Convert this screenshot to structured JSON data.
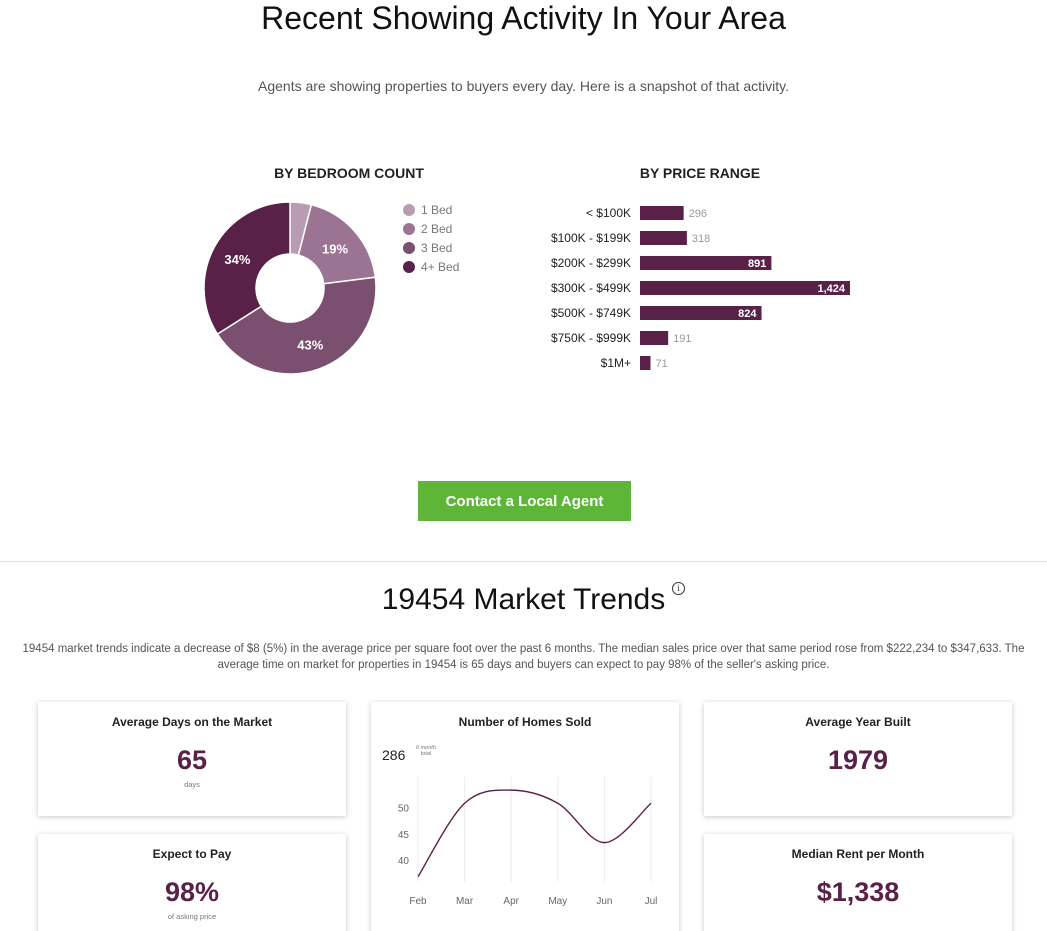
{
  "header": {
    "title": "Recent Showing Activity In Your Area",
    "subtitle": "Agents are showing properties to buyers every day. Here is a snapshot of that activity."
  },
  "bedroom": {
    "title": "BY BEDROOM COUNT",
    "legend": [
      "1 Bed",
      "2 Bed",
      "3 Bed",
      "4+ Bed"
    ],
    "colors": [
      "#b89db2",
      "#9b7493",
      "#7a4f70",
      "#5a2148"
    ]
  },
  "price": {
    "title": "BY PRICE RANGE",
    "bar_color": "#5a2148"
  },
  "cta": {
    "label": "Contact a Local Agent"
  },
  "trends": {
    "title": "19454 Market Trends",
    "info_icon": "info-icon",
    "description": "19454 market trends indicate a decrease of $8 (5%) in the average price per square foot over the past 6 months. The median sales price over that same period rose from $222,234 to $347,633. The average time on market for properties in 19454 is 65 days and buyers can expect to pay 98% of the seller's asking price."
  },
  "cards": {
    "days": {
      "title": "Average Days on the Market",
      "value": "65",
      "unit": "days"
    },
    "pay": {
      "title": "Expect to Pay",
      "value": "98%",
      "unit": "of asking price"
    },
    "year": {
      "title": "Average Year Built",
      "value": "1979"
    },
    "rent": {
      "title": "Median Rent per Month",
      "value": "$1,338"
    },
    "sold": {
      "title": "Number of Homes Sold",
      "total": "286",
      "total_label_line1": "6 month",
      "total_label_line2": "total"
    }
  },
  "chart_data": [
    {
      "type": "pie",
      "title": "BY BEDROOM COUNT",
      "categories": [
        "1 Bed",
        "2 Bed",
        "3 Bed",
        "4+ Bed"
      ],
      "values": [
        4,
        19,
        43,
        34
      ],
      "slice_labels": [
        "",
        "19%",
        "43%",
        "34%"
      ]
    },
    {
      "type": "bar",
      "title": "BY PRICE RANGE",
      "orientation": "horizontal",
      "categories": [
        "< $100K",
        "$100K - $199K",
        "$200K - $299K",
        "$300K - $499K",
        "$500K - $749K",
        "$750K - $999K",
        "$1M+"
      ],
      "values": [
        296,
        318,
        891,
        1424,
        824,
        191,
        71
      ],
      "value_labels": [
        "296",
        "318",
        "891",
        "1,424",
        "824",
        "191",
        "71"
      ]
    },
    {
      "type": "line",
      "title": "Number of Homes Sold",
      "x": [
        "Feb",
        "Mar",
        "Apr",
        "May",
        "Jun",
        "Jul"
      ],
      "values": [
        37,
        51,
        53.5,
        51,
        43.5,
        51
      ],
      "yticks": [
        40,
        45,
        50
      ],
      "ylim": [
        36,
        56
      ],
      "grid": "vertical"
    }
  ]
}
